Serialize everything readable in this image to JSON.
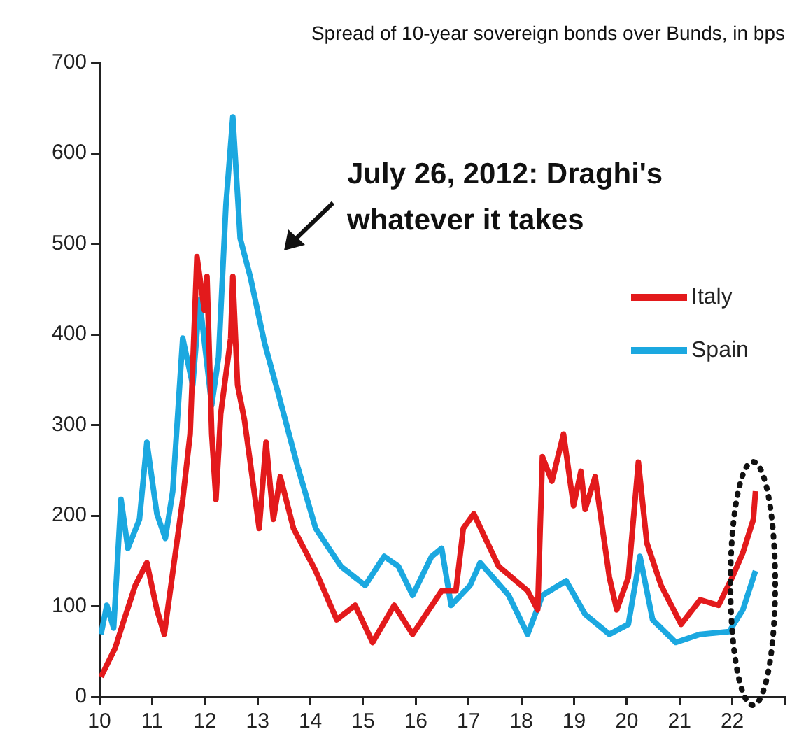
{
  "chart_data": {
    "type": "line",
    "title": "Spread of 10-year sovereign bonds over Bunds, in bps",
    "annotations": [
      "July 26, 2012: Draghi's whatever it takes"
    ],
    "xlim": [
      10,
      23
    ],
    "xticks": [
      10,
      11,
      12,
      13,
      14,
      15,
      16,
      17,
      18,
      19,
      20,
      21,
      22,
      {
        "value": 23,
        "label": null
      }
    ],
    "ylim": [
      0,
      700
    ],
    "yticks": [
      0,
      100,
      200,
      300,
      400,
      500,
      600,
      700
    ],
    "legend": "right",
    "marker": "none",
    "line_style": "solid",
    "series": [
      {
        "name": "Italy",
        "color": "#e31a1c",
        "x": [
          10.03,
          10.3,
          10.44,
          10.68,
          10.9,
          11.09,
          11.23,
          11.58,
          11.72,
          11.85,
          11.99,
          12.04,
          12.13,
          12.21,
          12.3,
          12.49,
          12.53,
          12.62,
          12.75,
          13.03,
          13.16,
          13.3,
          13.43,
          13.68,
          14.1,
          14.5,
          14.85,
          15.18,
          15.59,
          15.94,
          16.49,
          16.76,
          16.9,
          17.1,
          17.57,
          18.12,
          18.31,
          18.4,
          18.58,
          18.8,
          18.99,
          19.13,
          19.21,
          19.4,
          19.67,
          19.81,
          20.03,
          20.22,
          20.38,
          20.65,
          21.03,
          21.39,
          21.74,
          22.0,
          22.2,
          22.4,
          22.44
        ],
        "values": [
          22,
          54,
          80,
          123,
          148,
          96,
          69,
          218,
          290,
          486,
          427,
          464,
          290,
          218,
          312,
          396,
          464,
          344,
          306,
          186,
          281,
          196,
          243,
          186,
          139,
          85,
          101,
          60,
          101,
          69,
          117,
          117,
          186,
          202,
          144,
          117,
          96,
          265,
          238,
          290,
          211,
          249,
          207,
          243,
          132,
          96,
          132,
          259,
          170,
          123,
          80,
          107,
          101,
          132,
          159,
          196,
          227
        ]
      },
      {
        "name": "Spain",
        "color": "#1ba8e0",
        "x": [
          10.03,
          10.14,
          10.27,
          10.41,
          10.54,
          10.76,
          10.9,
          11.09,
          11.25,
          11.39,
          11.58,
          11.77,
          11.9,
          12.13,
          12.26,
          12.4,
          12.53,
          12.67,
          12.86,
          13.13,
          13.4,
          13.76,
          14.1,
          14.58,
          15.04,
          15.4,
          15.67,
          15.94,
          16.3,
          16.49,
          16.67,
          17.03,
          17.22,
          17.76,
          18.12,
          18.4,
          18.85,
          19.21,
          19.67,
          20.03,
          20.25,
          20.49,
          20.93,
          21.39,
          21.94,
          22.2,
          22.44
        ],
        "values": [
          69,
          101,
          76,
          218,
          164,
          196,
          281,
          202,
          175,
          227,
          396,
          344,
          438,
          322,
          375,
          543,
          640,
          506,
          464,
          391,
          333,
          254,
          186,
          144,
          123,
          155,
          144,
          112,
          155,
          164,
          101,
          123,
          148,
          112,
          69,
          112,
          128,
          91,
          69,
          80,
          155,
          85,
          60,
          69,
          72,
          96,
          139
        ]
      }
    ]
  }
}
